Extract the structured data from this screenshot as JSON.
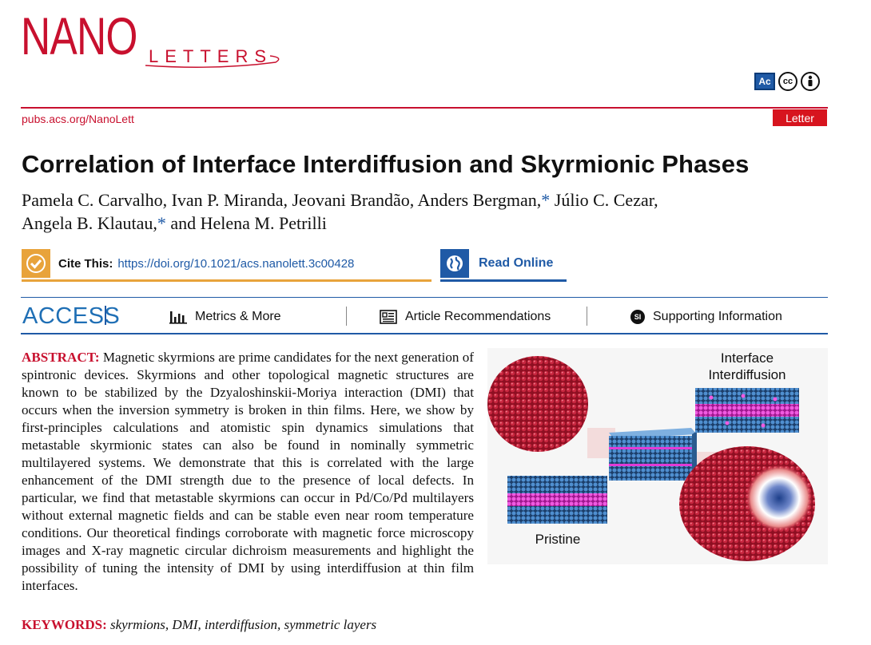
{
  "header": {
    "logo_main": "NANO",
    "logo_sub": "LETTERS",
    "journal_url": "pubs.acs.org/NanoLett",
    "article_type": "Letter",
    "license_icons": [
      "acs-authorchoice-icon",
      "cc-icon",
      "by-attribution-icon"
    ],
    "license_ac_text": "Ac",
    "license_cc_text": "cc"
  },
  "article": {
    "title": "Correlation of Interface Interdiffusion and Skyrmionic Phases",
    "authors_line1": "Pamela C. Carvalho, Ivan P. Miranda, Jeovani Brandão, Anders Bergman,",
    "authors_line1_tail": " Júlio C. Cezar,",
    "authors_line2_a": "Angela B. Klautau,",
    "authors_line2_b": " and Helena M. Petrilli",
    "corresponding_mark": "*"
  },
  "cite": {
    "label": "Cite This:",
    "doi": "https://doi.org/10.1021/acs.nanolett.3c00428",
    "read_label": "Read Online"
  },
  "access_bar": {
    "access_label": "ACCESS",
    "metrics_label": "Metrics & More",
    "recommendations_label": "Article Recommendations",
    "supporting_label": "Supporting Information",
    "si_badge": "SI"
  },
  "abstract": {
    "heading": "ABSTRACT:",
    "text": "Magnetic skyrmions are prime candidates for the next generation of spintronic devices. Skyrmions and other topological magnetic structures are known to be stabilized by the Dzyaloshinskii-Moriya interaction (DMI) that occurs when the inversion symmetry is broken in thin films. Here, we show by first-principles calculations and atomistic spin dynamics simulations that metastable skyrmionic states can also be found in nominally symmetric multilayered systems. We demonstrate that this is correlated with the large enhancement of the DMI strength due to the presence of local defects. In particular, we find that metastable skyrmions can occur in Pd/Co/Pd multilayers without external magnetic fields and can be stable even near room temperature conditions. Our theoretical findings corroborate with magnetic force microscopy images and X-ray magnetic circular dichroism measurements and highlight the possibility of tuning the intensity of DMI by using interdiffusion at thin film interfaces.",
    "keywords_heading": "KEYWORDS:",
    "keywords": "skyrmions, DMI, interdiffusion, symmetric layers"
  },
  "toc_graphic": {
    "label_interface_line1": "Interface",
    "label_interface_line2": "Interdiffusion",
    "label_pristine": "Pristine",
    "colors": {
      "magnetic_red": "#b3182f",
      "cobalt_blue": "#3a77b8",
      "pd_magenta": "#e23bd6"
    }
  }
}
